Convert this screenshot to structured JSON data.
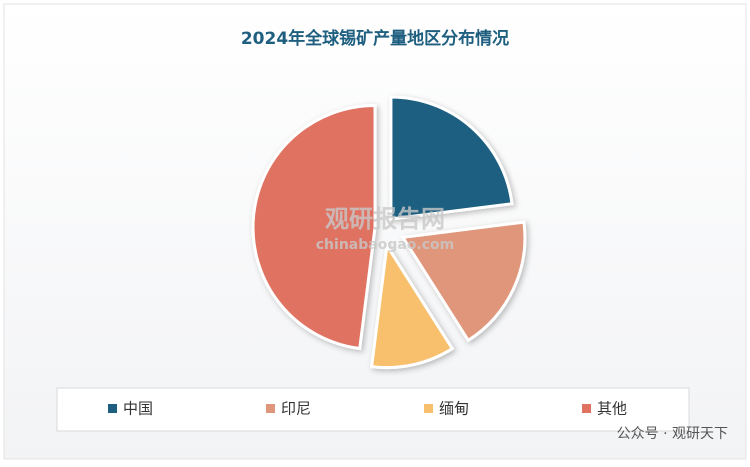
{
  "chart_data": {
    "type": "pie",
    "title": "2024年全球锡矿产量地区分布情况",
    "categories": [
      "中国",
      "印尼",
      "缅甸",
      "其他"
    ],
    "values": [
      23,
      18,
      11,
      48
    ],
    "colors": [
      "#1e5f80",
      "#e0967a",
      "#f8bf6c",
      "#e07262"
    ],
    "legend": "bottom"
  },
  "watermark": {
    "name": "观研报告网",
    "url": "chinabaogao.com"
  },
  "footer": "公众号 · 观研天下"
}
